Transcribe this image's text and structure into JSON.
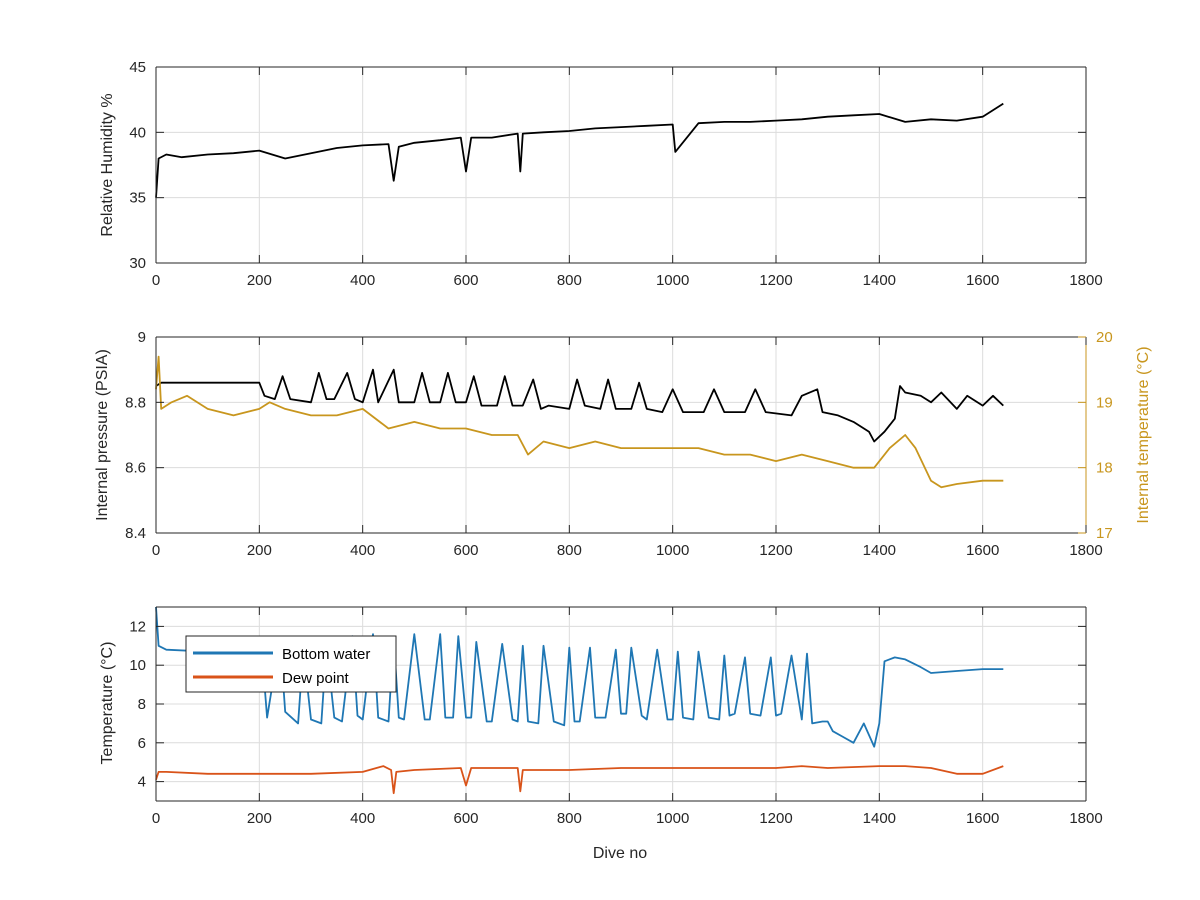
{
  "figure": {
    "xlabel": "Dive no",
    "colors": {
      "humidity": "#000000",
      "pressure": "#000000",
      "internal_temperature": "#c8961e",
      "bottom_water": "#1f77b4",
      "dew_point": "#d95319",
      "axis": "#262626",
      "grid": "#dcdcdc"
    }
  },
  "chart_data": [
    {
      "type": "line",
      "ylabel": "Relative Humidity %",
      "xlim": [
        0,
        1800
      ],
      "ylim": [
        30,
        45
      ],
      "xticks": [
        "0",
        "200",
        "400",
        "600",
        "800",
        "1000",
        "1200",
        "1400",
        "1600",
        "1800"
      ],
      "yticks": [
        "30",
        "35",
        "40",
        "45"
      ],
      "grid": true,
      "series": [
        {
          "key": "humidity",
          "x": [
            0,
            5,
            20,
            50,
            100,
            150,
            200,
            250,
            300,
            350,
            400,
            450,
            460,
            470,
            500,
            550,
            590,
            600,
            610,
            650,
            700,
            705,
            710,
            750,
            800,
            850,
            900,
            950,
            1000,
            1005,
            1050,
            1100,
            1150,
            1200,
            1250,
            1300,
            1350,
            1400,
            1450,
            1500,
            1550,
            1600,
            1640
          ],
          "y": [
            35.0,
            38.0,
            38.3,
            38.1,
            38.3,
            38.4,
            38.6,
            38.0,
            38.4,
            38.8,
            39.0,
            39.1,
            36.3,
            38.9,
            39.2,
            39.4,
            39.6,
            37.0,
            39.6,
            39.6,
            39.9,
            37.0,
            39.9,
            40.0,
            40.1,
            40.3,
            40.4,
            40.5,
            40.6,
            38.5,
            40.7,
            40.8,
            40.8,
            40.9,
            41.0,
            41.2,
            41.3,
            41.4,
            40.8,
            41.0,
            40.9,
            41.2,
            42.2
          ]
        }
      ]
    },
    {
      "type": "line",
      "ylabel": "Internal pressure (PSIA)",
      "y2label": "Internal temperature (°C)",
      "xlim": [
        0,
        1800
      ],
      "ylim": [
        8.4,
        9
      ],
      "y2lim": [
        17,
        20
      ],
      "xticks": [
        "0",
        "200",
        "400",
        "600",
        "800",
        "1000",
        "1200",
        "1400",
        "1600",
        "1800"
      ],
      "yticks": [
        "8.4",
        "8.6",
        "8.8",
        "9"
      ],
      "y2ticks": [
        "17",
        "18",
        "19",
        "20"
      ],
      "grid": true,
      "series": [
        {
          "key": "pressure",
          "axis": "left",
          "x": [
            0,
            10,
            50,
            100,
            150,
            200,
            210,
            230,
            245,
            260,
            300,
            315,
            330,
            345,
            370,
            385,
            400,
            420,
            430,
            460,
            470,
            500,
            515,
            530,
            550,
            565,
            580,
            600,
            615,
            630,
            660,
            675,
            690,
            710,
            730,
            745,
            760,
            800,
            815,
            830,
            860,
            875,
            890,
            920,
            935,
            950,
            980,
            1000,
            1020,
            1060,
            1080,
            1100,
            1140,
            1160,
            1180,
            1230,
            1250,
            1280,
            1290,
            1320,
            1350,
            1380,
            1390,
            1410,
            1430,
            1440,
            1450,
            1480,
            1500,
            1520,
            1550,
            1570,
            1600,
            1620,
            1640
          ],
          "y": [
            8.85,
            8.86,
            8.86,
            8.86,
            8.86,
            8.86,
            8.82,
            8.81,
            8.88,
            8.81,
            8.8,
            8.89,
            8.81,
            8.81,
            8.89,
            8.81,
            8.8,
            8.9,
            8.8,
            8.9,
            8.8,
            8.8,
            8.89,
            8.8,
            8.8,
            8.89,
            8.8,
            8.8,
            8.88,
            8.79,
            8.79,
            8.88,
            8.79,
            8.79,
            8.87,
            8.78,
            8.79,
            8.78,
            8.87,
            8.79,
            8.78,
            8.87,
            8.78,
            8.78,
            8.86,
            8.78,
            8.77,
            8.84,
            8.77,
            8.77,
            8.84,
            8.77,
            8.77,
            8.84,
            8.77,
            8.76,
            8.82,
            8.84,
            8.77,
            8.76,
            8.74,
            8.71,
            8.68,
            8.71,
            8.75,
            8.85,
            8.83,
            8.82,
            8.8,
            8.83,
            8.78,
            8.82,
            8.79,
            8.82,
            8.79
          ]
        },
        {
          "key": "internal_temperature",
          "axis": "right",
          "x": [
            0,
            5,
            10,
            30,
            60,
            100,
            150,
            200,
            220,
            250,
            300,
            350,
            400,
            450,
            500,
            550,
            600,
            650,
            700,
            720,
            750,
            800,
            850,
            900,
            950,
            1000,
            1050,
            1100,
            1150,
            1200,
            1250,
            1300,
            1350,
            1390,
            1420,
            1450,
            1470,
            1500,
            1520,
            1550,
            1600,
            1640
          ],
          "y": [
            19.2,
            19.7,
            18.9,
            19.0,
            19.1,
            18.9,
            18.8,
            18.9,
            19.0,
            18.9,
            18.8,
            18.8,
            18.9,
            18.6,
            18.7,
            18.6,
            18.6,
            18.5,
            18.5,
            18.2,
            18.4,
            18.3,
            18.4,
            18.3,
            18.3,
            18.3,
            18.3,
            18.2,
            18.2,
            18.1,
            18.2,
            18.1,
            18.0,
            18.0,
            18.3,
            18.5,
            18.3,
            17.8,
            17.7,
            17.75,
            17.8,
            17.8
          ]
        }
      ]
    },
    {
      "type": "line",
      "xlabel": "Dive no",
      "ylabel": "Temperature (°C)",
      "xlim": [
        0,
        1800
      ],
      "ylim": [
        3,
        13
      ],
      "xticks": [
        "0",
        "200",
        "400",
        "600",
        "800",
        "1000",
        "1200",
        "1400",
        "1600",
        "1800"
      ],
      "yticks": [
        "4",
        "6",
        "8",
        "10",
        "12"
      ],
      "grid": true,
      "legend": "top-left",
      "series": [
        {
          "key": "bottom_water",
          "name": "Bottom water",
          "x": [
            0,
            5,
            20,
            100,
            180,
            200,
            210,
            215,
            240,
            250,
            275,
            285,
            300,
            320,
            330,
            345,
            360,
            380,
            390,
            400,
            420,
            430,
            450,
            460,
            470,
            480,
            500,
            520,
            530,
            550,
            560,
            575,
            585,
            600,
            610,
            620,
            640,
            650,
            670,
            690,
            700,
            710,
            720,
            740,
            750,
            770,
            790,
            800,
            810,
            820,
            840,
            850,
            870,
            890,
            900,
            910,
            920,
            940,
            950,
            970,
            990,
            1000,
            1010,
            1020,
            1040,
            1050,
            1070,
            1090,
            1100,
            1110,
            1120,
            1140,
            1150,
            1170,
            1190,
            1200,
            1210,
            1230,
            1250,
            1260,
            1270,
            1290,
            1300,
            1310,
            1330,
            1350,
            1370,
            1390,
            1400,
            1410,
            1430,
            1450,
            1480,
            1500,
            1550,
            1600,
            1640
          ],
          "y": [
            13.0,
            11.0,
            10.8,
            10.7,
            10.6,
            10.6,
            9.0,
            7.3,
            11.4,
            7.6,
            7.0,
            10.8,
            7.2,
            7.0,
            11.0,
            7.3,
            7.1,
            11.5,
            7.4,
            7.2,
            11.6,
            7.3,
            7.1,
            11.4,
            7.3,
            7.2,
            11.6,
            7.2,
            7.2,
            11.6,
            7.3,
            7.3,
            11.5,
            7.3,
            7.3,
            11.2,
            7.1,
            7.1,
            11.1,
            7.2,
            7.1,
            11.0,
            7.1,
            7.0,
            11.0,
            7.1,
            6.9,
            10.9,
            7.1,
            7.1,
            10.9,
            7.3,
            7.3,
            10.8,
            7.5,
            7.5,
            10.9,
            7.4,
            7.2,
            10.8,
            7.2,
            7.2,
            10.7,
            7.3,
            7.2,
            10.7,
            7.3,
            7.2,
            10.5,
            7.4,
            7.5,
            10.4,
            7.5,
            7.4,
            10.4,
            7.4,
            7.5,
            10.5,
            7.2,
            10.6,
            7.0,
            7.1,
            7.1,
            6.6,
            6.3,
            6.0,
            7.0,
            5.8,
            7.0,
            10.2,
            10.4,
            10.3,
            9.9,
            9.6,
            9.7,
            9.8,
            9.8
          ]
        },
        {
          "key": "dew_point",
          "name": "Dew point",
          "x": [
            0,
            5,
            20,
            100,
            200,
            300,
            400,
            440,
            455,
            460,
            465,
            500,
            590,
            600,
            610,
            700,
            705,
            710,
            800,
            900,
            1000,
            1100,
            1200,
            1250,
            1300,
            1400,
            1450,
            1500,
            1550,
            1600,
            1640
          ],
          "y": [
            4.1,
            4.5,
            4.5,
            4.4,
            4.4,
            4.4,
            4.5,
            4.8,
            4.6,
            3.4,
            4.5,
            4.6,
            4.7,
            3.8,
            4.7,
            4.7,
            3.5,
            4.6,
            4.6,
            4.7,
            4.7,
            4.7,
            4.7,
            4.8,
            4.7,
            4.8,
            4.8,
            4.7,
            4.4,
            4.4,
            4.8
          ]
        }
      ]
    }
  ]
}
